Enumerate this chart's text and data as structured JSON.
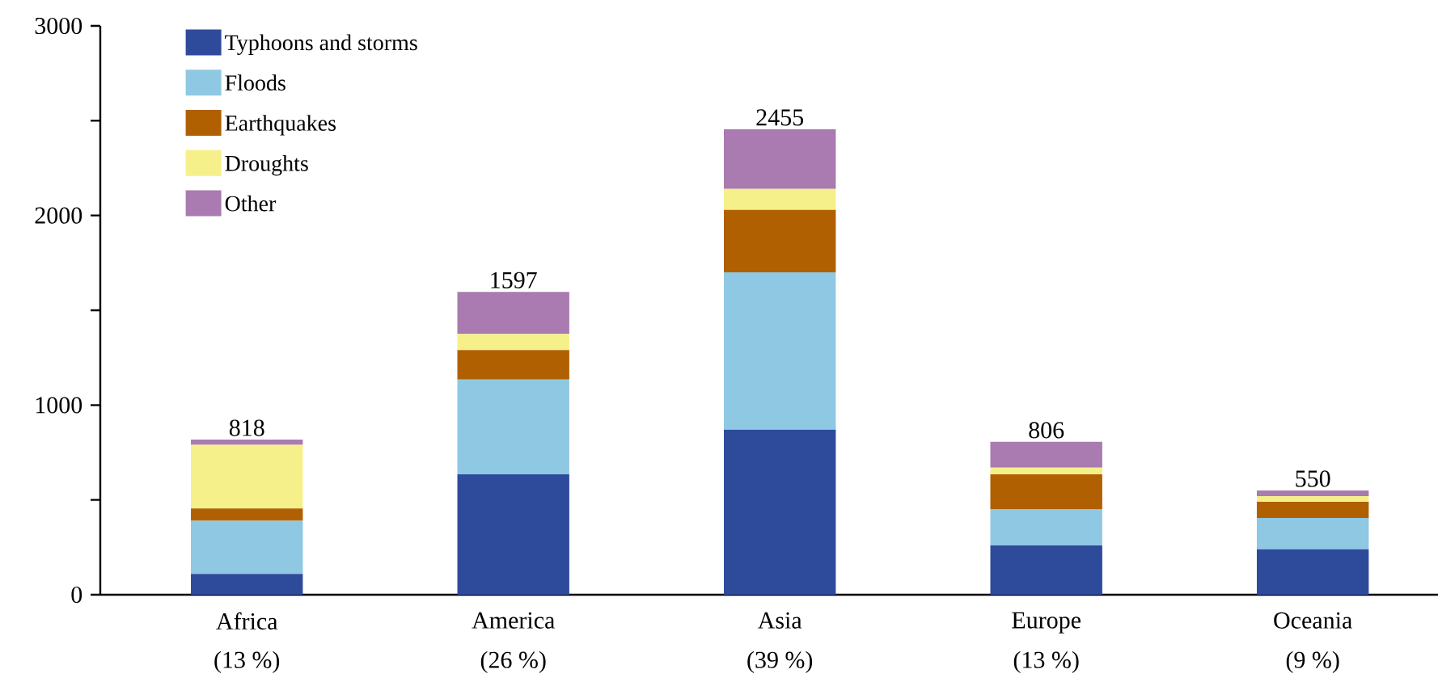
{
  "chart_data": {
    "type": "bar",
    "stacked": true,
    "categories": [
      "Africa",
      "America",
      "Asia",
      "Europe",
      "Oceania"
    ],
    "series": [
      {
        "name": "Typhoons and storms",
        "color": "#2e4a9b",
        "values": [
          110,
          635,
          870,
          260,
          240
        ]
      },
      {
        "name": "Floods",
        "color": "#8fc8e3",
        "values": [
          280,
          500,
          830,
          190,
          165
        ]
      },
      {
        "name": "Earthquakes",
        "color": "#b06000",
        "values": [
          65,
          155,
          330,
          185,
          85
        ]
      },
      {
        "name": "Droughts",
        "color": "#f5f08a",
        "values": [
          335,
          85,
          110,
          35,
          30
        ]
      },
      {
        "name": "Other",
        "color": "#a97bb0",
        "values": [
          28,
          222,
          315,
          136,
          30
        ]
      }
    ],
    "totals": [
      "818",
      "1597",
      "2455",
      "806",
      "550"
    ],
    "annotations": [
      "(13 %)",
      "(26 %)",
      "(39 %)",
      "(13 %)",
      "(9 %)"
    ],
    "ylim": [
      0,
      3000
    ],
    "yticks": [
      0,
      {
        "value": 500,
        "label": null
      },
      1000,
      {
        "value": 1500,
        "label": null
      },
      2000,
      {
        "value": 2500,
        "label": null
      },
      3000
    ],
    "legend": "top left",
    "grid": false
  }
}
